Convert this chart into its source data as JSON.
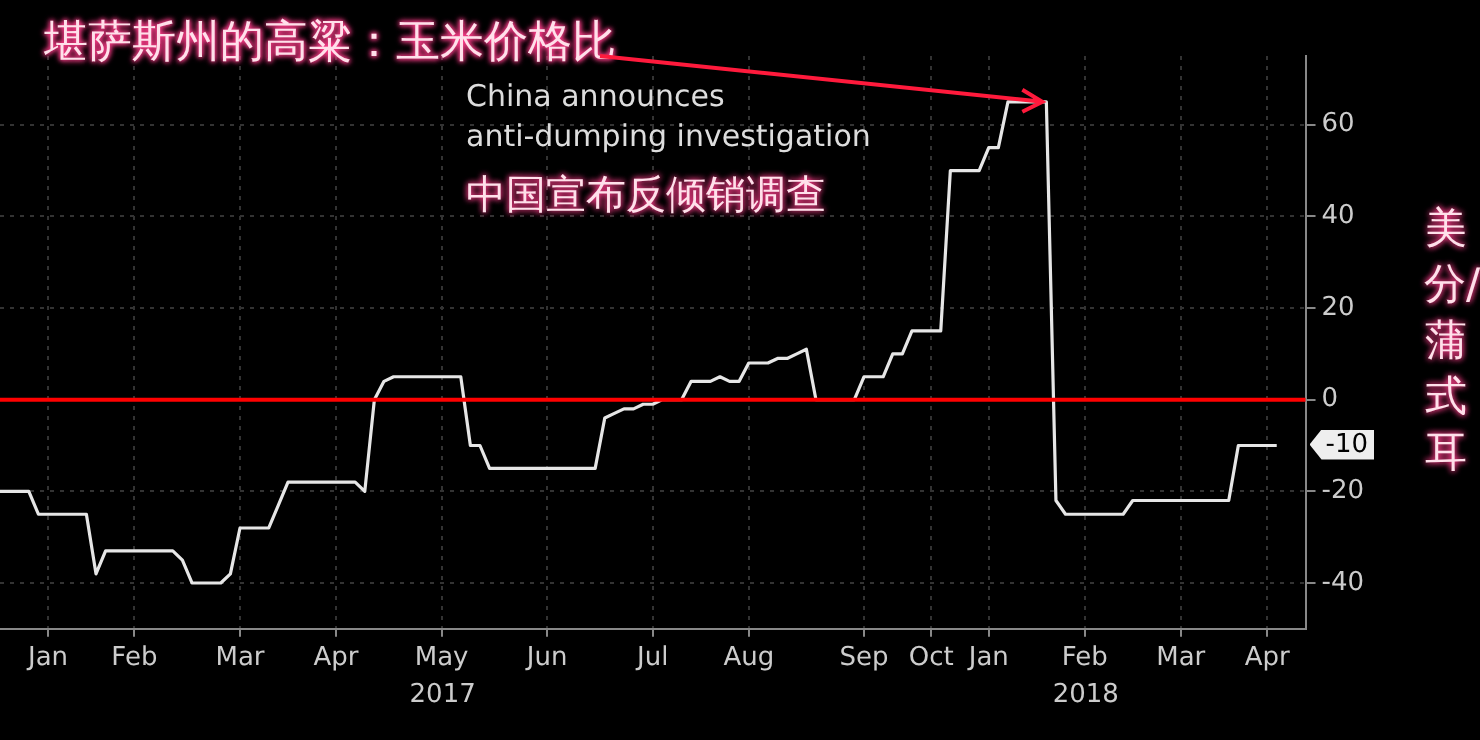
{
  "chart_data": {
    "type": "line",
    "title": "堪萨斯州的高粱：玉米价格比",
    "ylabel": "美分/蒲式耳",
    "categories": [
      null,
      null,
      null,
      null,
      null,
      "Jan",
      null,
      null,
      null,
      null,
      null,
      null,
      null,
      null,
      "Feb",
      null,
      null,
      null,
      null,
      null,
      null,
      null,
      null,
      null,
      null,
      "Mar",
      null,
      null,
      null,
      null,
      null,
      null,
      null,
      null,
      null,
      "Apr",
      null,
      null,
      null,
      null,
      null,
      null,
      null,
      null,
      null,
      null,
      "May",
      null,
      null,
      null,
      null,
      null,
      null,
      null,
      null,
      null,
      null,
      "Jun",
      null,
      null,
      null,
      null,
      null,
      null,
      null,
      null,
      null,
      null,
      "Jul",
      null,
      null,
      null,
      null,
      null,
      null,
      null,
      null,
      null,
      "Aug",
      null,
      null,
      null,
      null,
      null,
      null,
      null,
      null,
      null,
      null,
      null,
      "Sep",
      null,
      null,
      null,
      null,
      null,
      null,
      "Oct",
      null,
      null,
      null,
      null,
      null,
      "Jan",
      null,
      null,
      null,
      null,
      null,
      null,
      null,
      null,
      null,
      "Feb",
      null,
      null,
      null,
      null,
      null,
      null,
      null,
      null,
      null,
      "Mar",
      null,
      null,
      null,
      null,
      null,
      null,
      null,
      null,
      "Apr",
      null,
      null,
      null,
      null
    ],
    "series": [
      {
        "color": "#e6e6e6",
        "values": [
          -20,
          -20,
          -20,
          -20,
          -25,
          -25,
          -25,
          -25,
          -25,
          -25,
          -38,
          -33,
          -33,
          -33,
          -33,
          -33,
          -33,
          -33,
          -33,
          -35,
          -40,
          -40,
          -40,
          -40,
          -38,
          -28,
          -28,
          -28,
          -28,
          -23,
          -18,
          -18,
          -18,
          -18,
          -18,
          -18,
          -18,
          -18,
          -20,
          0,
          4,
          5,
          5,
          5,
          5,
          5,
          5,
          5,
          5,
          -10,
          -10,
          -15,
          -15,
          -15,
          -15,
          -15,
          -15,
          -15,
          -15,
          -15,
          -15,
          -15,
          -15,
          -4,
          -3,
          -2,
          -2,
          -1,
          -1,
          0,
          0,
          0,
          4,
          4,
          4,
          5,
          4,
          4,
          8,
          8,
          8,
          9,
          9,
          10,
          11,
          0,
          0,
          0,
          0,
          0,
          5,
          5,
          5,
          10,
          10,
          15,
          15,
          15,
          15,
          50,
          50,
          50,
          50,
          55,
          55,
          65,
          65,
          65,
          65,
          65,
          -22,
          -25,
          -25,
          -25,
          -25,
          -25,
          -25,
          -25,
          -22,
          -22,
          -22,
          -22,
          -22,
          -22,
          -22,
          -22,
          -22,
          -22,
          -22,
          -10,
          -10,
          -10,
          -10,
          -10,
          null,
          null,
          null
        ]
      }
    ],
    "ylim": [
      -50,
      75
    ],
    "yticks": [
      -40,
      -20,
      0,
      20,
      40,
      60
    ],
    "grid": true,
    "legend": false,
    "marker": "none",
    "line_style": "solid",
    "ref_lines": [
      {
        "axis": "y",
        "value": 0,
        "color": "#ff0000"
      }
    ],
    "annotations": [
      "China announces\nanti-dumping investigation",
      "中国宣布反倾销调查",
      "2017",
      "2018",
      "-10"
    ]
  }
}
